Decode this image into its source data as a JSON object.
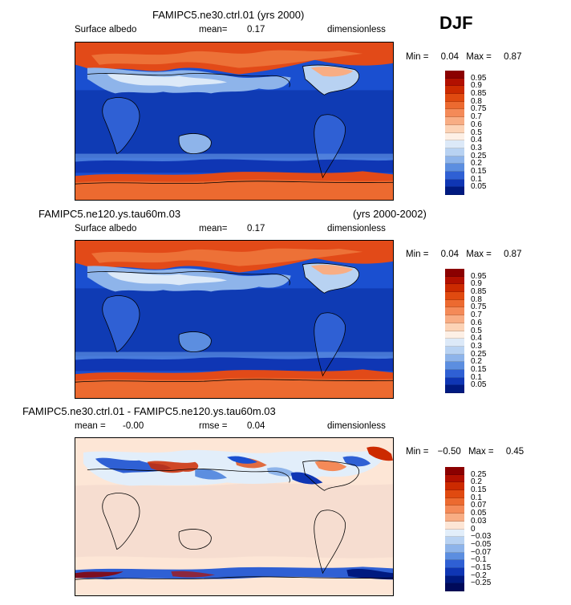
{
  "season": "DJF",
  "panels": [
    {
      "id": "p1",
      "title_left": "FAMIPC5.ne30.ctrl.01 (yrs 2000)",
      "title_right": "",
      "variable": "Surface albedo",
      "stat_label": "mean=",
      "stat_value": "0.17",
      "stat2_label": "",
      "stat2_value": "",
      "units": "dimensionless",
      "min_label": "Min =",
      "min_value": "0.04",
      "max_label": "Max =",
      "max_value": "0.87",
      "colorbar_levels": [
        "0.95",
        "0.9",
        "0.85",
        "0.8",
        "0.75",
        "0.7",
        "0.6",
        "0.5",
        "0.4",
        "0.3",
        "0.25",
        "0.2",
        "0.15",
        "0.1",
        "0.05"
      ],
      "colors": [
        "#8b0000",
        "#b21000",
        "#cc2a00",
        "#e04a10",
        "#ec6a30",
        "#f48a58",
        "#f8ad84",
        "#fcd3b6",
        "#fdf0e6",
        "#dce9f8",
        "#b8d2f2",
        "#8eb4ea",
        "#5c8ee0",
        "#2f60d4",
        "#0f36b4",
        "#001a80"
      ]
    },
    {
      "id": "p2",
      "title_left": "FAMIPC5.ne120.ys.tau60m.03",
      "title_right": "(yrs 2000-2002)",
      "variable": "Surface albedo",
      "stat_label": "mean=",
      "stat_value": "0.17",
      "stat2_label": "",
      "stat2_value": "",
      "units": "dimensionless",
      "min_label": "Min =",
      "min_value": "0.04",
      "max_label": "Max =",
      "max_value": "0.87",
      "colorbar_levels": [
        "0.95",
        "0.9",
        "0.85",
        "0.8",
        "0.75",
        "0.7",
        "0.6",
        "0.5",
        "0.4",
        "0.3",
        "0.25",
        "0.2",
        "0.15",
        "0.1",
        "0.05"
      ],
      "colors": [
        "#8b0000",
        "#b21000",
        "#cc2a00",
        "#e04a10",
        "#ec6a30",
        "#f48a58",
        "#f8ad84",
        "#fcd3b6",
        "#fdf0e6",
        "#dce9f8",
        "#b8d2f2",
        "#8eb4ea",
        "#5c8ee0",
        "#2f60d4",
        "#0f36b4",
        "#001a80"
      ]
    },
    {
      "id": "p3",
      "title_left": "FAMIPC5.ne30.ctrl.01 - FAMIPC5.ne120.ys.tau60m.03",
      "title_right": "",
      "variable": "",
      "stat_label": "mean =",
      "stat_value": "-0.00",
      "stat2_label": "rmse =",
      "stat2_value": "0.04",
      "units": "dimensionless",
      "min_label": "Min =",
      "min_value": "−0.50",
      "max_label": "Max =",
      "max_value": "0.45",
      "colorbar_levels": [
        "0.25",
        "0.2",
        "0.15",
        "0.1",
        "0.07",
        "0.05",
        "0.03",
        "0",
        "−0.03",
        "−0.05",
        "−0.07",
        "−0.1",
        "−0.15",
        "−0.2",
        "−0.25"
      ],
      "colors": [
        "#8b0000",
        "#b21000",
        "#cc2a00",
        "#e04a10",
        "#ec6a30",
        "#f48a58",
        "#f8ad84",
        "#fde6d6",
        "#e2eefa",
        "#b8d2f2",
        "#8eb4ea",
        "#5c8ee0",
        "#2f60d4",
        "#0f36b4",
        "#001a80",
        "#000a5a"
      ]
    }
  ]
}
